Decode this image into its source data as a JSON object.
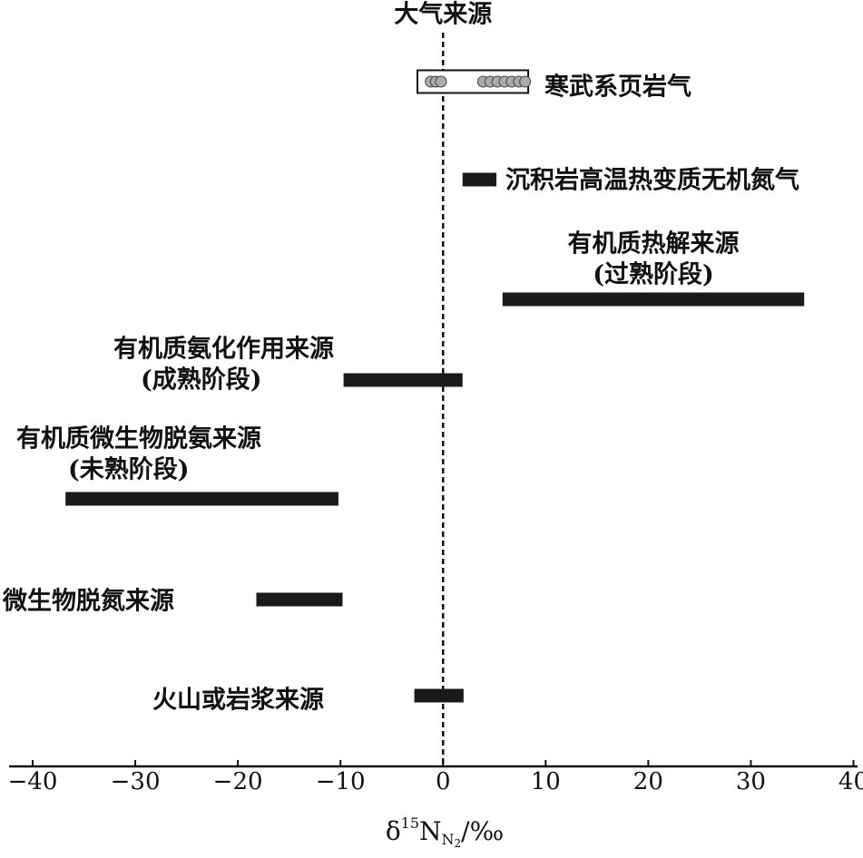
{
  "chart_data": {
    "type": "range-bar",
    "reference_line": {
      "value": 0,
      "label": "大气来源"
    },
    "series": [
      {
        "label": [
          "寒武系页岩气"
        ],
        "range": [
          -2.5,
          8.3
        ],
        "color": "#ffffff",
        "points": [
          -1.2,
          -0.7,
          -0.2,
          3.9,
          4.6,
          5.3,
          6.0,
          6.7,
          7.4,
          8.0
        ]
      },
      {
        "label": [
          "沉积岩高温热变质无机氮气"
        ],
        "range": [
          1.9,
          5.2
        ],
        "color": "#1a1a1a"
      },
      {
        "label": [
          "有机质热解来源",
          "(过熟阶段)"
        ],
        "range": [
          5.8,
          35.2
        ],
        "color": "#1a1a1a"
      },
      {
        "label": [
          "有机质氨化作用来源",
          "(成熟阶段)"
        ],
        "range": [
          -9.7,
          1.9
        ],
        "color": "#1a1a1a"
      },
      {
        "label": [
          "有机质微生物脱氨来源",
          "(未熟阶段)"
        ],
        "range": [
          -36.8,
          -10.2
        ],
        "color": "#1a1a1a"
      },
      {
        "label": [
          "微生物脱氮来源"
        ],
        "range": [
          -18.2,
          -9.8
        ],
        "color": "#1a1a1a"
      },
      {
        "label": [
          "火山或岩浆来源"
        ],
        "range": [
          -2.8,
          2.0
        ],
        "color": "#1a1a1a"
      }
    ],
    "xlabel": [
      "δ",
      "15",
      "N",
      "N",
      "2",
      "/‰"
    ],
    "xlim": [
      -42.3,
      40.4
    ],
    "xticks": [
      {
        "value": -40,
        "label": "−40"
      },
      {
        "value": -30,
        "label": "−30"
      },
      {
        "value": -20,
        "label": "−20"
      },
      {
        "value": -10,
        "label": "−10"
      },
      0,
      10,
      20,
      30,
      40
    ]
  }
}
